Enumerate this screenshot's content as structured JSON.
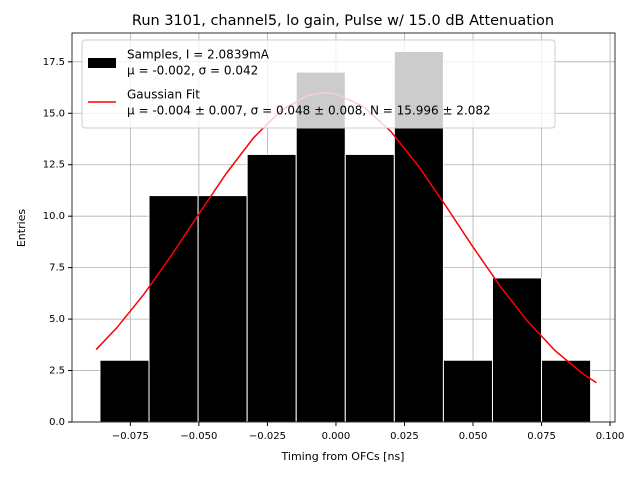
{
  "chart_data": {
    "type": "histogram",
    "title": "Run 3101, channel5, lo gain, Pulse w/ 15.0 dB Attenuation",
    "xlabel": "Timing from OFCs [ns]",
    "ylabel": "Entries",
    "bins": [
      -0.0861,
      -0.0682,
      -0.0503,
      -0.0324,
      -0.0145,
      0.0034,
      0.0213,
      0.0392,
      0.0571,
      0.075,
      0.0929
    ],
    "series": [
      {
        "name": "Samples, I = 2.0839mA",
        "label": "μ = -0.002, σ = 0.042",
        "color": "#000000",
        "edgecolor": "#ffffff",
        "values": [
          3,
          11,
          11,
          13,
          17,
          13,
          18,
          3,
          7,
          3
        ]
      },
      {
        "name": "Gaussian Fit",
        "label": "μ = -0.004 ± 0.007, σ = 0.048 ± 0.008, N = 15.996 ± 2.082",
        "type": "line",
        "color": "#ff0000",
        "x": [
          -0.0875,
          -0.08,
          -0.07,
          -0.06,
          -0.05,
          -0.04,
          -0.03,
          -0.02,
          -0.01,
          -0.004,
          0,
          0.01,
          0.02,
          0.03,
          0.04,
          0.05,
          0.06,
          0.07,
          0.08,
          0.09,
          0.095
        ],
        "values": [
          3.52,
          4.57,
          6.22,
          8.1,
          10.11,
          12.08,
          13.82,
          15.14,
          15.88,
          16,
          15.94,
          15.33,
          14.12,
          12.45,
          10.51,
          8.5,
          6.58,
          4.88,
          3.46,
          2.35,
          1.91
        ]
      }
    ],
    "xlim": [
      -0.0963,
      0.1018
    ],
    "ylim": [
      0,
      18.9
    ],
    "xticks": [
      {
        "value": -0.075,
        "label": "−0.075"
      },
      {
        "value": -0.05,
        "label": "−0.050"
      },
      {
        "value": -0.025,
        "label": "−0.025"
      },
      {
        "value": 0,
        "label": "0.000"
      },
      0.025,
      {
        "value": 0.05,
        "label": "0.050"
      },
      0.075,
      {
        "value": 0.1,
        "label": "0.100"
      }
    ],
    "yticks": [
      {
        "value": 0,
        "label": "0.0"
      },
      2.5,
      {
        "value": 5,
        "label": "5.0"
      },
      7.5,
      {
        "value": 10,
        "label": "10.0"
      },
      12.5,
      {
        "value": 15,
        "label": "15.0"
      },
      17.5
    ],
    "grid": true,
    "legend": "upper left"
  }
}
